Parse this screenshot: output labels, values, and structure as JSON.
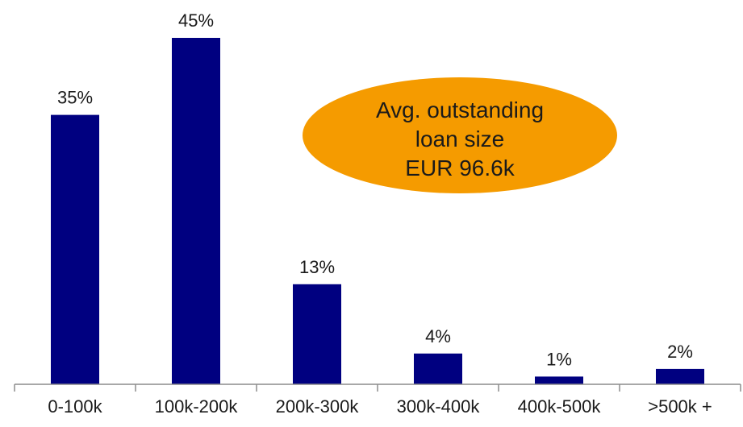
{
  "chart_data": {
    "type": "bar",
    "title": "",
    "xlabel": "",
    "ylabel": "",
    "categories": [
      "0-100k",
      "100k-200k",
      "200k-300k",
      "300k-400k",
      "400k-500k",
      ">500k +"
    ],
    "values": [
      35,
      45,
      13,
      4,
      1,
      2
    ],
    "value_labels": [
      "35%",
      "45%",
      "13%",
      "4%",
      "1%",
      "2%"
    ],
    "ylim": [
      0,
      45
    ],
    "grid": false,
    "legend": "none",
    "colors": {
      "bar": "#000080",
      "annotation_fill": "#F59B00",
      "text": "#1a1a1a"
    },
    "annotation": {
      "shape": "ellipse",
      "lines": [
        "Avg. outstanding",
        "loan size",
        "EUR 96.6k"
      ]
    }
  }
}
